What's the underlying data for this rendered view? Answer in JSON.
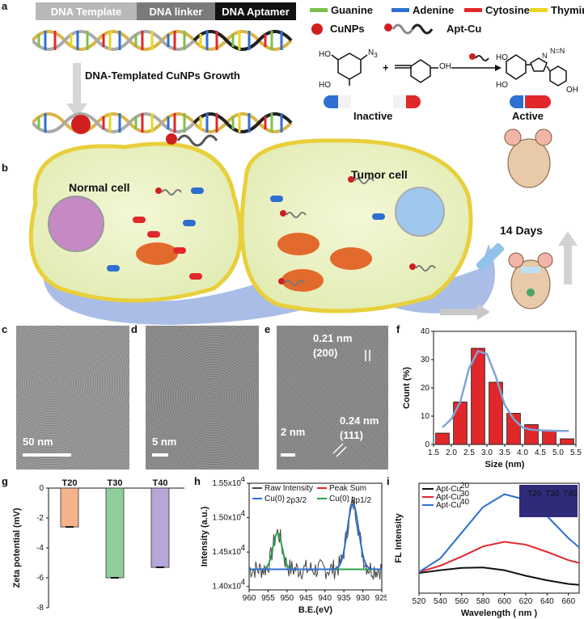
{
  "panel_labels": [
    "a",
    "b",
    "c",
    "d",
    "e",
    "f",
    "g",
    "h",
    "i"
  ],
  "panel_a": {
    "segments": [
      "DNA Template",
      "DNA linker",
      "DNA Aptamer"
    ],
    "growth_label": "DNA-Templated CuNPs Growth",
    "legend": [
      {
        "label": "Guanine",
        "color": "#7cc14a"
      },
      {
        "label": "Adenine",
        "color": "#2e6fd1"
      },
      {
        "label": "Cytosine",
        "color": "#e0282b"
      },
      {
        "label": "Thymine",
        "color": "#e8d722"
      }
    ],
    "cunps_label": "CuNPs",
    "aptcu_label": "Apt-Cu",
    "inactive_label": "Inactive",
    "active_label": "Active",
    "n3_label": "N",
    "n3_sub": "3",
    "ho1": "HO",
    "ho2": "HO",
    "oh_label": "OH",
    "plus": "+",
    "prod_ho1": "HO",
    "prod_ho2": "HO",
    "prod_oh": "OH",
    "prod_n": "N",
    "prod_nn": "N=N"
  },
  "panel_b": {
    "normal_cell": "Normal cell",
    "tumor_cell": "Tumor cell",
    "days": "14 Days"
  },
  "panel_c": {
    "scale": "50 nm"
  },
  "panel_d": {
    "scale": "5 nm"
  },
  "panel_e": {
    "scale": "2 nm",
    "d1": "0.21 nm",
    "p1": "(200)",
    "d2": "0.24 nm",
    "p2": "(111)"
  },
  "chart_data": [
    {
      "id": "f",
      "type": "bar",
      "x": [
        1.75,
        2.25,
        2.75,
        3.25,
        3.75,
        4.25,
        4.75,
        5.25
      ],
      "values": [
        4,
        15,
        34,
        22,
        11,
        7,
        5,
        2
      ],
      "fit_x": [
        1.75,
        2.0,
        2.25,
        2.5,
        2.75,
        3.0,
        3.25,
        3.5,
        3.75,
        4.0,
        4.25,
        4.5,
        5.0,
        5.3
      ],
      "fit_y": [
        6,
        9,
        15,
        27,
        33,
        32,
        24,
        14,
        9,
        6,
        5.2,
        5,
        4.8,
        4.8
      ],
      "xlabel": "Size (nm)",
      "ylabel": "Count (%)",
      "xlim": [
        1.5,
        5.5
      ],
      "ylim": [
        0,
        40
      ],
      "xticks": [
        "1.5",
        "2.0",
        "2.5",
        "3.0",
        "3.5",
        "4.0",
        "4.5",
        "5.0",
        "5.5"
      ],
      "yticks": [
        "0",
        "10",
        "20",
        "30",
        "40"
      ]
    },
    {
      "id": "g",
      "type": "bar",
      "categories": [
        "T20",
        "T30",
        "T40"
      ],
      "values": [
        -2.6,
        -6.0,
        -5.3
      ],
      "colors": [
        "#f4b38a",
        "#8fce9c",
        "#b5a8d9"
      ],
      "ylabel": "Zeta potential (mV)",
      "ylim": [
        -8,
        0
      ],
      "yticks": [
        "0",
        "-2",
        "-4",
        "-6",
        "-8"
      ]
    },
    {
      "id": "h",
      "type": "line",
      "xlabel": "B.E.(eV)",
      "ylabel": "Intensity (a.u.)",
      "xlim": [
        960,
        925
      ],
      "ylim": [
        1.395,
        1.55
      ],
      "xticks": [
        "960",
        "955",
        "950",
        "945",
        "940",
        "935",
        "930",
        "925"
      ],
      "yticks": [
        "1.40x10",
        "1.45x10",
        "1.50x10",
        "1.55x10"
      ],
      "ytick_exp": "4",
      "series": [
        {
          "name": "Raw Intensity",
          "color": "#444444"
        },
        {
          "name": "Peak Sum",
          "color": "#e0282b"
        },
        {
          "name": "Cu(0)",
          "sub": "2p3/2",
          "color": "#2e6fd1"
        },
        {
          "name": "Cu(0)",
          "sub": "2p1/2",
          "color": "#2aa34a"
        }
      ],
      "peaks": [
        {
          "center": 932.6,
          "height": 0.095,
          "width": 1.5
        },
        {
          "center": 952.5,
          "height": 0.053,
          "width": 1.2
        }
      ],
      "baseline": 1.425
    },
    {
      "id": "i",
      "type": "line",
      "xlabel": "Wavelength ( nm )",
      "ylabel": "FL Intensity",
      "xlim": [
        520,
        670
      ],
      "xticks": [
        "520",
        "540",
        "560",
        "580",
        "600",
        "620",
        "640",
        "660"
      ],
      "series": [
        {
          "name": "Apt-Cu",
          "sup": "20",
          "color": "#111111",
          "x": [
            520,
            540,
            560,
            580,
            600,
            620,
            640,
            660,
            670
          ],
          "y": [
            110,
            125,
            138,
            140,
            125,
            95,
            70,
            50,
            45
          ]
        },
        {
          "name": "Apt-Cu",
          "sup": "30",
          "color": "#e0282b",
          "x": [
            520,
            540,
            560,
            580,
            600,
            620,
            640,
            660,
            670
          ],
          "y": [
            115,
            150,
            200,
            255,
            280,
            265,
            225,
            180,
            165
          ]
        },
        {
          "name": "Apt-Cu",
          "sup": "40",
          "color": "#2e6fd1",
          "x": [
            520,
            540,
            560,
            580,
            600,
            620,
            640,
            660,
            670
          ],
          "y": [
            115,
            190,
            330,
            470,
            540,
            510,
            420,
            300,
            250
          ]
        }
      ],
      "inset": [
        "T20",
        "T30",
        "T40"
      ]
    }
  ]
}
